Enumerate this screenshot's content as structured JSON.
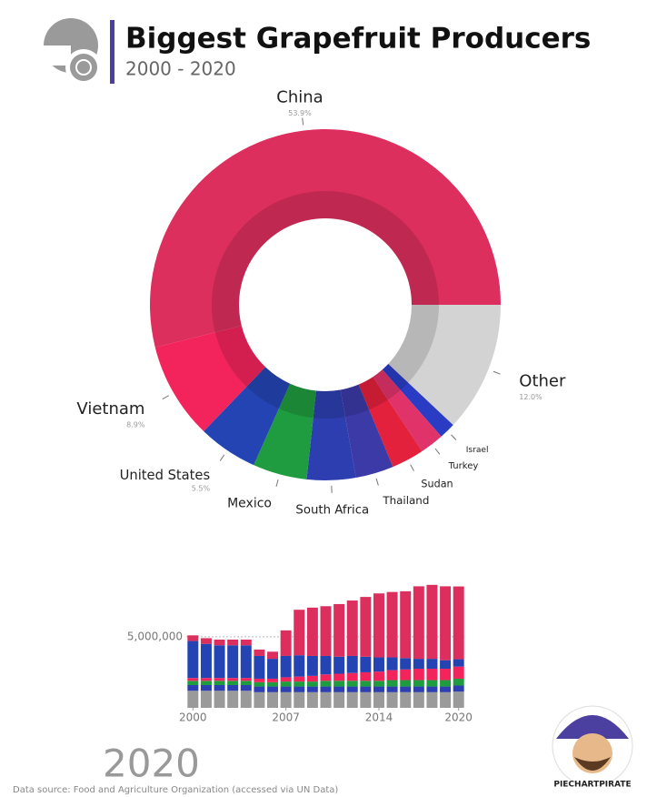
{
  "header": {
    "title": "Biggest Grapefruit Producers",
    "subtitle": "2000 - 2020"
  },
  "year_label": "2020",
  "source": "Data source: Food and Agriculture Organization (accessed via UN Data)",
  "logo_text": "PIECHARTPIRATE",
  "chart_data": [
    {
      "type": "donut",
      "categories": [
        "Other",
        "Israel",
        "Turkey",
        "Sudan",
        "Thailand",
        "South Africa",
        "Mexico",
        "United States",
        "Vietnam",
        "China"
      ],
      "values": [
        12,
        1.5,
        2.2,
        3,
        3.5,
        4.5,
        5,
        5.5,
        8.9,
        53.9
      ],
      "value_labels": [
        "12.0%",
        null,
        null,
        null,
        null,
        null,
        null,
        "5.5%",
        "8.9%",
        "53.9%"
      ],
      "colors": [
        "#d3d3d3",
        "#2a3cc4",
        "#e0336a",
        "#e3213c",
        "#3c3aa6",
        "#2c3eb0",
        "#1f9c3f",
        "#2444b4",
        "#f2245b",
        "#dc2f5e"
      ]
    },
    {
      "type": "bar",
      "stacked": true,
      "x": [
        2000,
        2001,
        2002,
        2003,
        2004,
        2005,
        2006,
        2007,
        2008,
        2009,
        2010,
        2011,
        2012,
        2013,
        2014,
        2015,
        2016,
        2017,
        2018,
        2019,
        2020
      ],
      "xlim": [
        1999.5,
        2020.5
      ],
      "xticks": [
        2000,
        2007,
        2014,
        2020
      ],
      "ylim": [
        0,
        9600000
      ],
      "yticks": [
        {
          "value": 5000000,
          "label": "5,000,000"
        }
      ],
      "series": [
        {
          "color": "#9a9a9a",
          "values": [
            1200000,
            1200000,
            1200000,
            1200000,
            1200000,
            1100000,
            1100000,
            1100000,
            1100000,
            1100000,
            1100000,
            1100000,
            1100000,
            1100000,
            1100000,
            1100000,
            1100000,
            1100000,
            1100000,
            1100000,
            1140000
          ]
        },
        {
          "color": "#2c3eb0",
          "values": [
            400000,
            400000,
            400000,
            400000,
            400000,
            400000,
            400000,
            400000,
            400000,
            400000,
            400000,
            400000,
            400000,
            400000,
            400000,
            400000,
            400000,
            400000,
            400000,
            400000,
            430000
          ]
        },
        {
          "color": "#1f9c3f",
          "values": [
            300000,
            300000,
            300000,
            300000,
            300000,
            300000,
            300000,
            350000,
            350000,
            350000,
            400000,
            400000,
            400000,
            400000,
            400000,
            450000,
            450000,
            450000,
            450000,
            450000,
            480000
          ]
        },
        {
          "color": "#f2245b",
          "values": [
            200000,
            200000,
            200000,
            200000,
            200000,
            250000,
            250000,
            300000,
            350000,
            400000,
            450000,
            500000,
            550000,
            600000,
            650000,
            700000,
            750000,
            800000,
            800000,
            800000,
            850000
          ]
        },
        {
          "color": "#2444b4",
          "values": [
            2600000,
            2400000,
            2300000,
            2300000,
            2300000,
            1600000,
            1400000,
            1500000,
            1500000,
            1400000,
            1300000,
            1200000,
            1200000,
            1100000,
            1000000,
            900000,
            800000,
            700000,
            700000,
            600000,
            520000
          ]
        },
        {
          "color": "#dc2f5e",
          "values": [
            400000,
            400000,
            400000,
            400000,
            400000,
            450000,
            500000,
            1800000,
            3200000,
            3400000,
            3500000,
            3700000,
            3900000,
            4200000,
            4500000,
            4600000,
            4700000,
            5100000,
            5200000,
            5200000,
            5120000
          ]
        }
      ]
    }
  ]
}
